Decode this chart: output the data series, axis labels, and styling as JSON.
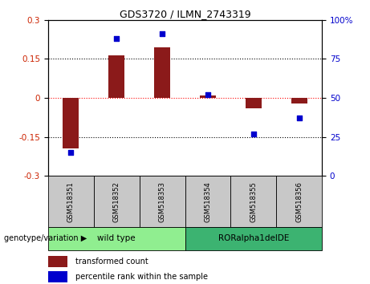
{
  "title": "GDS3720 / ILMN_2743319",
  "samples": [
    "GSM518351",
    "GSM518352",
    "GSM518353",
    "GSM518354",
    "GSM518355",
    "GSM518356"
  ],
  "bar_values": [
    -0.195,
    0.165,
    0.195,
    0.01,
    -0.04,
    -0.02
  ],
  "dot_values": [
    15,
    88,
    91,
    52,
    27,
    37
  ],
  "ylim_left": [
    -0.3,
    0.3
  ],
  "ylim_right": [
    0,
    100
  ],
  "yticks_left": [
    -0.3,
    -0.15,
    0,
    0.15,
    0.3
  ],
  "yticks_right": [
    0,
    25,
    50,
    75,
    100
  ],
  "bar_color": "#8B1A1A",
  "dot_color": "#0000CD",
  "genotype_groups": [
    {
      "label": "wild type",
      "count": 3,
      "color": "#90EE90"
    },
    {
      "label": "RORalpha1delDE",
      "count": 3,
      "color": "#3CB371"
    }
  ],
  "legend_bar_label": "transformed count",
  "legend_dot_label": "percentile rank within the sample",
  "genotype_label": "genotype/variation",
  "sample_label_bg": "#C8C8C8",
  "tick_label_color_left": "#CC2200",
  "tick_label_color_right": "#0000CC",
  "bar_width": 0.35
}
